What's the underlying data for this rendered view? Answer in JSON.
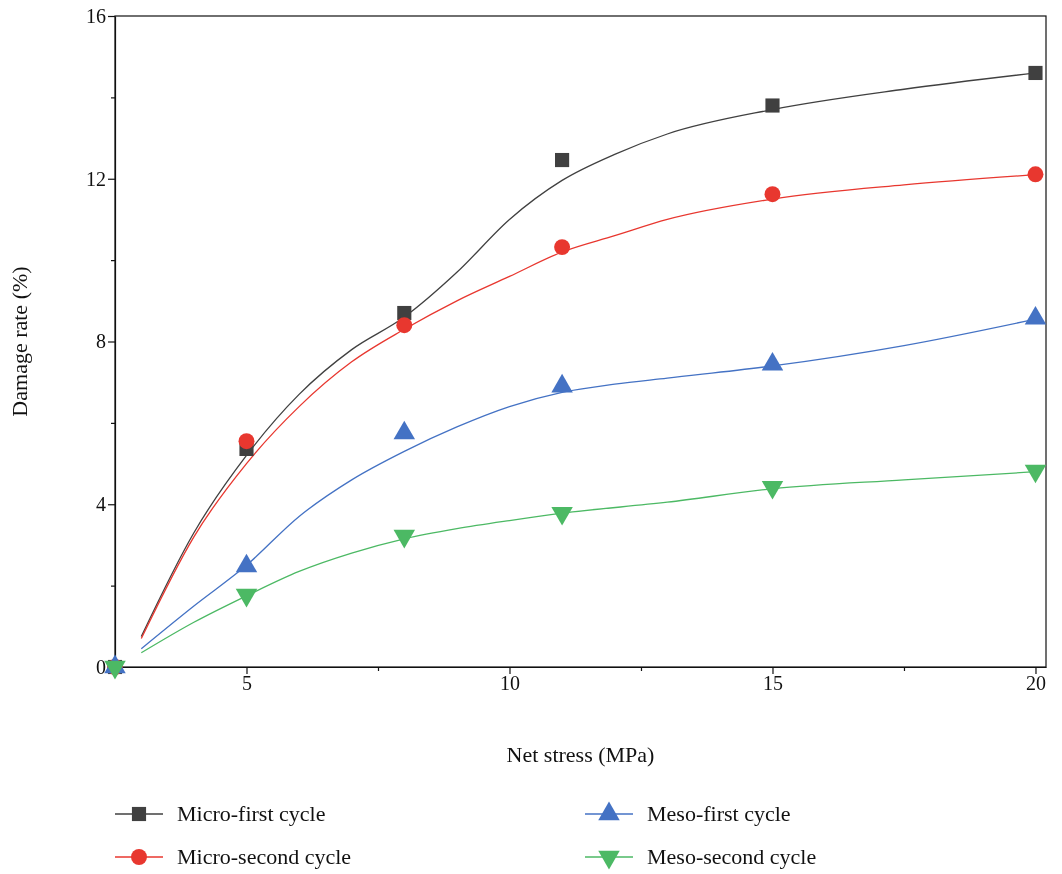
{
  "chart_data": {
    "type": "scatter",
    "xlabel": "Net stress (MPa)",
    "ylabel": "Damage rate (%)",
    "xlim": [
      2.5,
      20.2
    ],
    "ylim": [
      0,
      16
    ],
    "xticks": [
      {
        "value": 2.5,
        "label": null
      },
      5,
      {
        "value": 7.5,
        "label": null
      },
      10,
      {
        "value": 12.5,
        "label": null
      },
      15,
      {
        "value": 17.5,
        "label": null
      },
      20
    ],
    "yticks": [
      0,
      {
        "value": 2,
        "label": null
      },
      4,
      {
        "value": 6,
        "label": null
      },
      8,
      {
        "value": 10,
        "label": null
      },
      12,
      {
        "value": 14,
        "label": null
      },
      16
    ],
    "grid": false,
    "legend": "bottom",
    "series": [
      {
        "name": "Micro-first cycle",
        "marker": "square",
        "color": "#404040",
        "x": [
          2.5,
          5,
          8,
          11,
          15,
          20
        ],
        "values": [
          0,
          5.36,
          8.7,
          12.46,
          13.8,
          14.6
        ]
      },
      {
        "name": "Micro-second cycle",
        "marker": "circle",
        "color": "#e8372f",
        "x": [
          2.5,
          5,
          8,
          11,
          15,
          20
        ],
        "values": [
          0,
          5.55,
          8.4,
          10.32,
          11.62,
          12.11
        ]
      },
      {
        "name": "Meso-first cycle",
        "marker": "triangle",
        "color": "#4472c4",
        "x": [
          2.5,
          5,
          8,
          11,
          15,
          20
        ],
        "values": [
          0,
          2.48,
          5.75,
          6.9,
          7.44,
          8.57
        ]
      },
      {
        "name": "Meso-second cycle",
        "marker": "triangle-down",
        "color": "#4cb964",
        "x": [
          2.5,
          5,
          8,
          11,
          15,
          20
        ],
        "values": [
          0,
          1.77,
          3.22,
          3.78,
          4.42,
          4.82
        ]
      },
      {
        "type": "line",
        "color": "#404040",
        "x": [
          3,
          4,
          5,
          6,
          7,
          8,
          9,
          10,
          11,
          12,
          13,
          15,
          17.5,
          20
        ],
        "values": [
          0.75,
          3.3,
          5.2,
          6.7,
          7.8,
          8.6,
          9.7,
          11.0,
          11.96,
          12.6,
          13.1,
          13.7,
          14.2,
          14.6
        ]
      },
      {
        "type": "line",
        "color": "#e8372f",
        "x": [
          3,
          4,
          5,
          6,
          7,
          8,
          9,
          10,
          11,
          12,
          13,
          15,
          17.5,
          20
        ],
        "values": [
          0.7,
          3.2,
          5.0,
          6.4,
          7.5,
          8.3,
          9.0,
          9.6,
          10.2,
          10.6,
          11.0,
          11.5,
          11.85,
          12.1
        ]
      },
      {
        "type": "line",
        "color": "#4472c4",
        "x": [
          3,
          4,
          5,
          6,
          7,
          8,
          9,
          10,
          11,
          12,
          13,
          15,
          17.5,
          20
        ],
        "values": [
          0.45,
          1.5,
          2.5,
          3.7,
          4.6,
          5.3,
          5.9,
          6.4,
          6.75,
          6.95,
          7.1,
          7.4,
          7.9,
          8.55
        ]
      },
      {
        "type": "line",
        "color": "#4cb964",
        "x": [
          3,
          4,
          5,
          6,
          7,
          8,
          9,
          10,
          11,
          13,
          15,
          17.5,
          20
        ],
        "values": [
          0.35,
          1.1,
          1.75,
          2.35,
          2.8,
          3.15,
          3.4,
          3.6,
          3.78,
          4.05,
          4.38,
          4.6,
          4.8
        ]
      }
    ]
  }
}
